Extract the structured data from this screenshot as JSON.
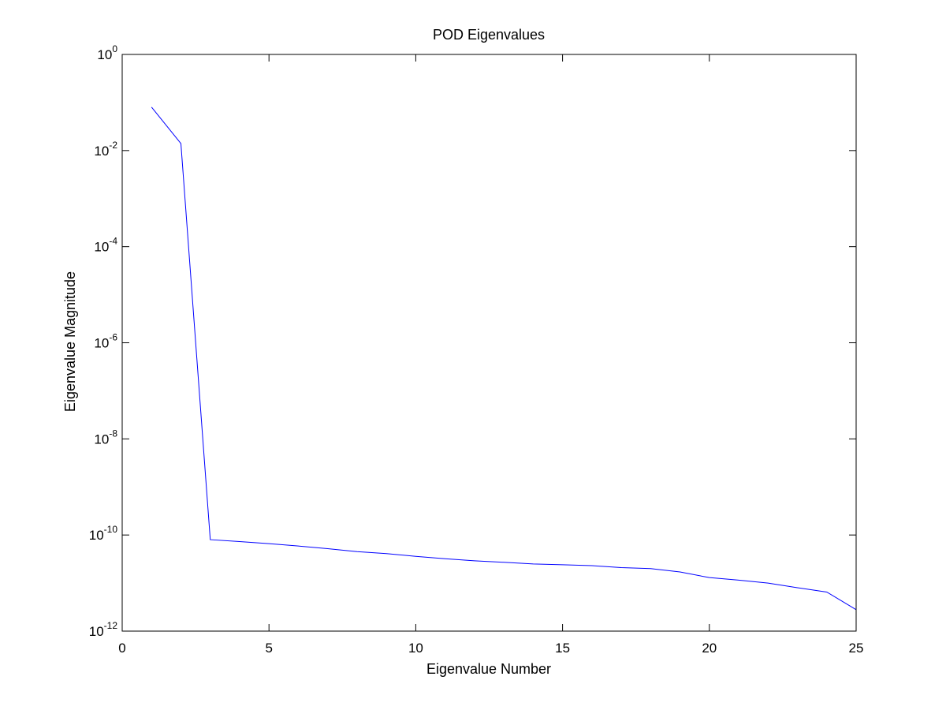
{
  "chart_data": {
    "type": "line",
    "title": "POD Eigenvalues",
    "xlabel": "Eigenvalue Number",
    "ylabel": "Eigenvalue Magnitude",
    "xlim": [
      0,
      25
    ],
    "ylim": [
      1e-12,
      1
    ],
    "yscale": "log",
    "grid": false,
    "x_ticks": [
      0,
      5,
      10,
      15,
      20,
      25
    ],
    "x_tick_labels": [
      "0",
      "5",
      "10",
      "15",
      "20",
      "25"
    ],
    "y_ticks": [
      1e-12,
      1e-10,
      1e-08,
      1e-06,
      0.0001,
      0.01,
      1
    ],
    "y_tick_labels": [
      {
        "base": "10",
        "exp": "-12"
      },
      {
        "base": "10",
        "exp": "-10"
      },
      {
        "base": "10",
        "exp": "-8"
      },
      {
        "base": "10",
        "exp": "-6"
      },
      {
        "base": "10",
        "exp": "-4"
      },
      {
        "base": "10",
        "exp": "-2"
      },
      {
        "base": "10",
        "exp": "0"
      }
    ],
    "series": [
      {
        "color": "#0000ff",
        "x": [
          1,
          2,
          3,
          4,
          5,
          6,
          7,
          8,
          9,
          10,
          11,
          12,
          13,
          14,
          15,
          16,
          17,
          18,
          19,
          20,
          21,
          22,
          23,
          24,
          25
        ],
        "y": [
          0.08,
          0.014,
          8e-11,
          7.3e-11,
          6.6e-11,
          5.9e-11,
          5.2e-11,
          4.5e-11,
          4.1e-11,
          3.6e-11,
          3.2e-11,
          2.9e-11,
          2.7e-11,
          2.5e-11,
          2.4e-11,
          2.3e-11,
          2.1e-11,
          2e-11,
          1.7e-11,
          1.3e-11,
          1.15e-11,
          1e-11,
          8e-12,
          6.5e-12,
          2.8e-12
        ]
      }
    ]
  }
}
